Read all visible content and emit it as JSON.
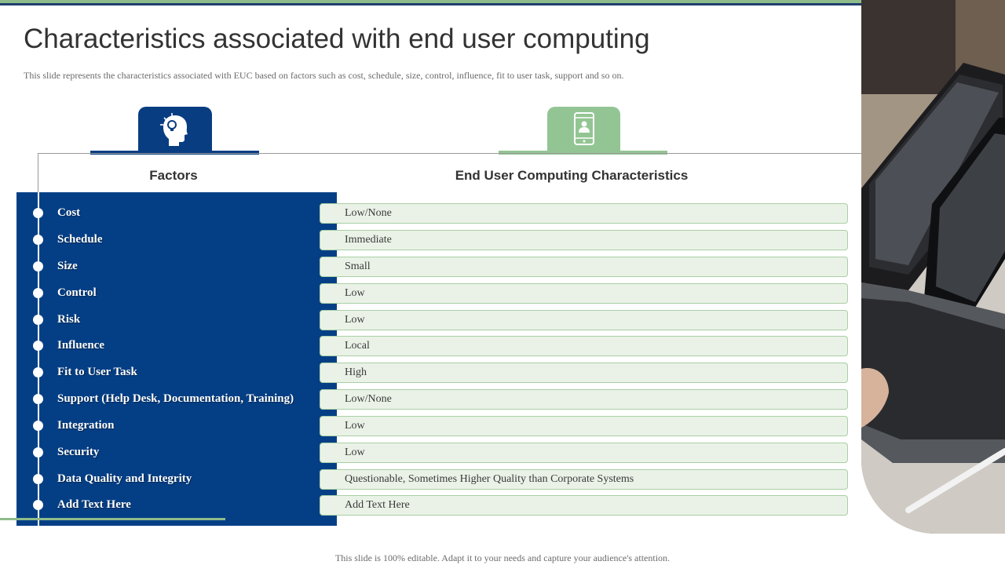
{
  "slide": {
    "title": "Characteristics associated with end user computing",
    "subtitle": "This slide represents the characteristics associated with EUC  based on factors such as cost, schedule, size,  control, influence,  fit to user task,  support and so on.",
    "footer": "This slide is 100% editable.  Adapt it to your needs and capture your audience's  attention."
  },
  "table": {
    "factors_header": "Factors",
    "characteristics_header": "End User Computing Characteristics",
    "rows": [
      {
        "factor": "Cost",
        "characteristic": "Low/None"
      },
      {
        "factor": "Schedule",
        "characteristic": "Immediate"
      },
      {
        "factor": "Size",
        "characteristic": "Small"
      },
      {
        "factor": "Control",
        "characteristic": "Low"
      },
      {
        "factor": "Risk",
        "characteristic": "Low"
      },
      {
        "factor": "Influence",
        "characteristic": "Local"
      },
      {
        "factor": "Fit to User Task",
        "characteristic": "High"
      },
      {
        "factor": "Support  (Help Desk, Documentation,  Training)",
        "characteristic": "Low/None"
      },
      {
        "factor": "Integration",
        "characteristic": "Low"
      },
      {
        "factor": "Security",
        "characteristic": "Low"
      },
      {
        "factor": "Data Quality  and  Integrity",
        "characteristic": "Questionable,  Sometimes  Higher Quality  than  Corporate Systems"
      },
      {
        "factor": "Add Text Here",
        "characteristic": "Add Text Here"
      }
    ]
  },
  "icons": {
    "factors_tab": "head-lightbulb-icon",
    "characteristics_tab": "mobile-user-icon",
    "photo": "laptop-photo"
  },
  "colors": {
    "navy": "#043f86",
    "green": "#93c594",
    "box_fill": "#eaf2e7",
    "box_border": "#a8cfa4"
  }
}
